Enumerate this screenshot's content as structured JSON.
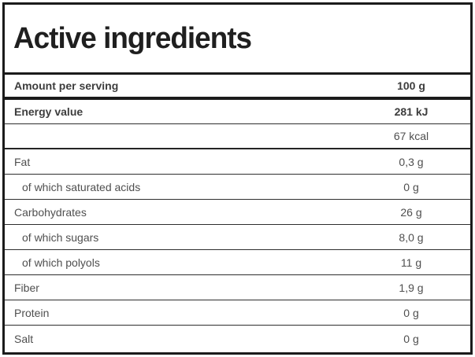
{
  "table": {
    "title": "Active ingredients",
    "columns": {
      "label": "Amount per serving",
      "value": "100 g"
    },
    "rows": [
      {
        "label": "Energy value",
        "value": "281 kJ"
      },
      {
        "label": "",
        "value": "67 kcal"
      },
      {
        "label": "Fat",
        "value": "0,3 g"
      },
      {
        "label": "of which saturated acids",
        "value": "0 g"
      },
      {
        "label": "Carbohydrates",
        "value": "26 g"
      },
      {
        "label": "of which sugars",
        "value": "8,0 g"
      },
      {
        "label": "of which polyols",
        "value": "11 g"
      },
      {
        "label": "Fiber",
        "value": "1,9 g"
      },
      {
        "label": "Protein",
        "value": "0 g"
      },
      {
        "label": "Salt",
        "value": "0 g"
      }
    ],
    "colors": {
      "border": "#1b1b1b",
      "title_text": "#1f1f1f",
      "bold_text": "#3d3d3d",
      "regular_text": "#4f4f4f"
    }
  }
}
